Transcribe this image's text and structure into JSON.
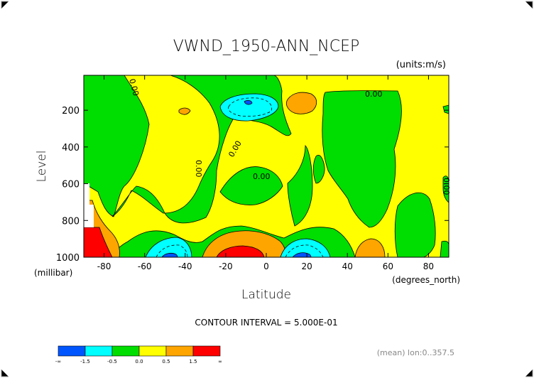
{
  "chart_data": {
    "type": "heatmap",
    "title": "VWND_1950-ANN_NCEP",
    "units_label": "(units:m/s)",
    "xlabel": "Latitude",
    "ylabel": "Level",
    "x_unit_label": "(degrees_north)",
    "y_unit_label": "(millibar)",
    "xlim": [
      -90,
      90
    ],
    "ylim": [
      1000,
      10
    ],
    "x_ticks": [
      -80,
      -60,
      -40,
      -20,
      0,
      20,
      40,
      60,
      80
    ],
    "x_tick_labels": [
      "-80",
      "-60",
      "-40",
      "-20",
      "0",
      "20",
      "40",
      "60",
      "80"
    ],
    "y_ticks": [
      200,
      400,
      600,
      800,
      1000
    ],
    "y_tick_labels": [
      "200",
      "400",
      "600",
      "800",
      "1000"
    ],
    "contour_labels": [
      "0.00",
      "0.00",
      "0.00",
      "0.00",
      "0.00",
      "0.00"
    ],
    "contour_interval_text": "CONTOUR INTERVAL = 5.000E-01",
    "footnote": "(mean) lon:0..357.5",
    "colorbar": {
      "colors": [
        "#0055ff",
        "#00ffff",
        "#00dd00",
        "#ffff00",
        "#ffa500",
        "#ff0000"
      ],
      "tick_labels": [
        "-∞",
        "-1.5",
        "-0.5",
        "0.0",
        "0.5",
        "1.5",
        "∞"
      ]
    },
    "regions": [
      {
        "level": "0 to 0.5",
        "color": "#ffff00",
        "description": "background"
      },
      {
        "level": "-0.5 to 0",
        "color": "#00dd00"
      },
      {
        "level": "< -1.5",
        "color": "#0055ff"
      },
      {
        "level": "-1.5 to -0.5",
        "color": "#00ffff"
      },
      {
        "level": "0.5 to 1.5",
        "color": "#ffa500"
      },
      {
        "level": "> 1.5",
        "color": "#ff0000"
      }
    ]
  }
}
